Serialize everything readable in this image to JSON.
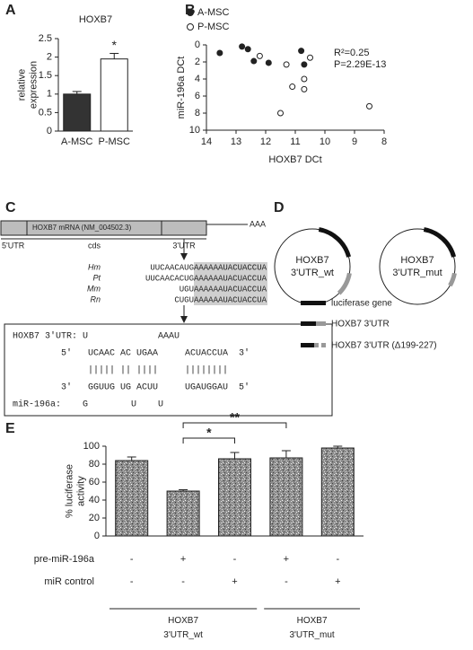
{
  "panel_labels": [
    "A",
    "B",
    "C",
    "D",
    "E"
  ],
  "chart_data": [
    {
      "type": "bar",
      "title": "HOXB7",
      "y_label": "relative expression",
      "categories": [
        "A-MSC",
        "P-MSC"
      ],
      "values": [
        1.0,
        1.95
      ],
      "errors": [
        0.07,
        0.15
      ],
      "colors": [
        "#333333",
        "#ffffff"
      ],
      "ylim": [
        0,
        2.5
      ],
      "yticks": [
        0,
        0.5,
        1,
        1.5,
        2,
        2.5
      ],
      "annotations": [
        "*"
      ]
    },
    {
      "type": "scatter",
      "x_label": "HOXB7 DCt",
      "y_label": "miR-196a DCt",
      "series": [
        {
          "name": "A-MSC",
          "color": "#222222",
          "marker": "filled",
          "x": [
            13.55,
            12.8,
            12.6,
            12.4,
            11.9,
            10.8,
            10.7
          ],
          "y": [
            0.95,
            0.2,
            0.5,
            1.9,
            2.1,
            0.7,
            2.3
          ]
        },
        {
          "name": "P-MSC",
          "color": "#222222",
          "marker": "open",
          "x": [
            12.2,
            11.3,
            11.1,
            10.7,
            10.7,
            10.5,
            11.5,
            8.5
          ],
          "y": [
            1.3,
            2.3,
            4.9,
            4.0,
            5.2,
            1.5,
            8.0,
            7.2
          ]
        }
      ],
      "xlim": [
        14,
        8
      ],
      "xticks": [
        14,
        13,
        12,
        11,
        10,
        9,
        8
      ],
      "ylim": [
        0,
        10
      ],
      "yticks": [
        0,
        2,
        4,
        6,
        8,
        10
      ],
      "y_reversed": true,
      "annotations": [
        "R²=0.25",
        "P=2.29E-13"
      ]
    },
    {
      "type": "bar",
      "y_label": "% luciferase activity",
      "values": [
        84,
        50,
        86,
        87,
        98
      ],
      "errors": [
        4,
        1.5,
        7,
        8,
        2
      ],
      "color": "#8c8c8c",
      "pattern": "speckle",
      "ylim": [
        0,
        100
      ],
      "yticks": [
        0,
        20,
        40,
        60,
        80,
        100
      ],
      "rows": [
        {
          "label": "pre-miR-196a",
          "cells": [
            "-",
            "+",
            "-",
            "+",
            "-"
          ]
        },
        {
          "label": "miR control",
          "cells": [
            "-",
            "-",
            "+",
            "-",
            "+"
          ]
        }
      ],
      "groups": [
        "HOXB7 3'UTR_wt",
        "HOXB7 3'UTR_mut"
      ],
      "significance": [
        "*",
        "**"
      ]
    }
  ],
  "panel_c": {
    "mrna_label": "HOXB7 mRNA (NM_004502.3)",
    "poly_a": "AAA",
    "regions": [
      "5'UTR",
      "cds",
      "3'UTR"
    ],
    "alignment": [
      {
        "species": "Hm",
        "seq": "UUCAACAUGAAAAAAUACUACCUA"
      },
      {
        "species": "Pt",
        "seq": "UUCAACACUGAAAAAAUACUACCUA"
      },
      {
        "species": "Mm",
        "seq": "UGUAAAAAAUACUACCUA"
      },
      {
        "species": "Rn",
        "seq": "CUGUAAAAAAUACUACCUA"
      }
    ],
    "pairing": [
      " HOXB7 3'UTR: U             AAAU",
      "          5'   UCAAC AC UGAA     ACUACCUA  3'",
      "               ||||| || ||||     ||||||||",
      "          3'   GGUUG UG ACUU     UGAUGGAU  5'",
      " miR-196a:    G        U    U"
    ]
  },
  "panel_d": {
    "plasmids": [
      "HOXB7 3'UTR_wt",
      "HOXB7 3'UTR_mut"
    ],
    "legend": [
      "luciferase gene",
      "HOXB7 3'UTR",
      "HOXB7 3'UTR (Δ199-227)"
    ]
  }
}
